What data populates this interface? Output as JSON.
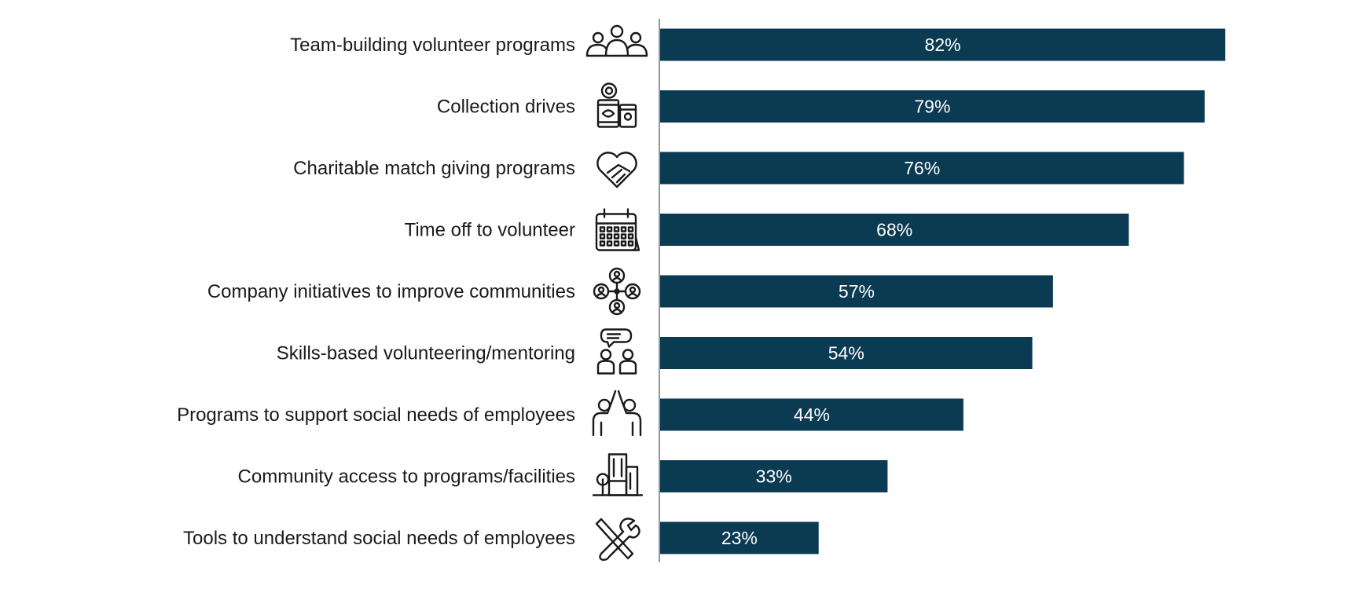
{
  "chart_data": {
    "type": "bar",
    "orientation": "horizontal",
    "categories": [
      "Team-building volunteer programs",
      "Collection drives",
      "Charitable match giving programs",
      "Time off to volunteer",
      "Company initiatives to improve communities",
      "Skills-based volunteering/mentoring",
      "Programs to support social needs of employees",
      "Community access to programs/facilities",
      "Tools to understand social needs of employees"
    ],
    "values": [
      82,
      79,
      76,
      68,
      57,
      54,
      44,
      33,
      23
    ],
    "value_labels": [
      "82%",
      "79%",
      "76%",
      "68%",
      "57%",
      "54%",
      "44%",
      "33%",
      "23%"
    ],
    "icons": [
      "team-icon",
      "donation-jar-icon",
      "heart-handshake-icon",
      "calendar-icon",
      "community-network-icon",
      "mentoring-icon",
      "high-five-icon",
      "building-icon",
      "tools-icon"
    ],
    "bar_color": "#0b3a53",
    "title": "",
    "xlabel": "",
    "ylabel": "",
    "xlim": [
      0,
      100
    ],
    "grid": false,
    "legend": "none"
  }
}
